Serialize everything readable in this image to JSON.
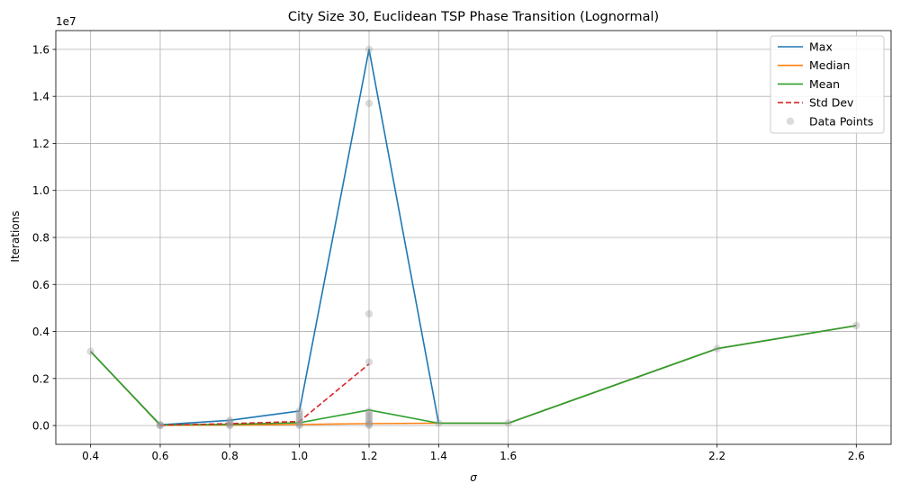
{
  "chart_data": {
    "type": "line",
    "title": "City Size 30, Euclidean TSP Phase Transition (Lognormal)",
    "xlabel": "σ",
    "ylabel": "Iterations",
    "y_multiplier_label": "1e7",
    "xlim": [
      0.3,
      2.7
    ],
    "ylim": [
      -0.08,
      1.68
    ],
    "x_ticks": [
      0.4,
      0.6,
      0.8,
      1.0,
      1.2,
      1.4,
      1.6,
      2.2,
      2.6
    ],
    "x_tick_labels": [
      "0.4",
      "0.6",
      "0.8",
      "1.0",
      "1.2",
      "1.4",
      "1.6",
      "2.2",
      "2.6"
    ],
    "y_ticks": [
      0.0,
      0.2,
      0.4,
      0.6,
      0.8,
      1.0,
      1.2,
      1.4,
      1.6
    ],
    "y_tick_labels": [
      "0.0",
      "0.2",
      "0.4",
      "0.6",
      "0.8",
      "1.0",
      "1.2",
      "1.4",
      "1.6"
    ],
    "grid": true,
    "legend_position": "top-right",
    "series": [
      {
        "name": "Max",
        "color": "#1f77b4",
        "dash": "solid",
        "x": [
          0.4,
          0.6,
          0.8,
          1.0,
          1.2,
          1.4,
          1.6,
          2.2,
          2.6
        ],
        "y": [
          0.315,
          0.003,
          0.022,
          0.062,
          1.6,
          0.01,
          0.01,
          0.327,
          0.425
        ]
      },
      {
        "name": "Median",
        "color": "#ff7f0e",
        "dash": "solid",
        "x": [
          0.4,
          0.6,
          0.8,
          1.0,
          1.2,
          1.4,
          1.6,
          2.2,
          2.6
        ],
        "y": [
          0.315,
          0.001,
          0.002,
          0.004,
          0.008,
          0.01,
          0.01,
          0.327,
          0.425
        ]
      },
      {
        "name": "Mean",
        "color": "#2ca02c",
        "dash": "solid",
        "x": [
          0.4,
          0.6,
          0.8,
          1.0,
          1.2,
          1.4,
          1.6,
          2.2,
          2.6
        ],
        "y": [
          0.315,
          0.002,
          0.005,
          0.012,
          0.066,
          0.01,
          0.01,
          0.327,
          0.425
        ]
      },
      {
        "name": "Std Dev",
        "color": "#d62728",
        "dash": "dashed",
        "x": [
          0.6,
          0.8,
          1.0,
          1.2
        ],
        "y": [
          0.001,
          0.008,
          0.017,
          0.262
        ]
      }
    ],
    "scatter": {
      "name": "Data Points",
      "color": "#999999",
      "points": [
        [
          0.4,
          0.315
        ],
        [
          0.6,
          0.0
        ],
        [
          0.6,
          0.002
        ],
        [
          0.6,
          0.003
        ],
        [
          0.8,
          0.0
        ],
        [
          0.8,
          0.003
        ],
        [
          0.8,
          0.008
        ],
        [
          0.8,
          0.015
        ],
        [
          0.8,
          0.022
        ],
        [
          1.0,
          0.0
        ],
        [
          1.0,
          0.005
        ],
        [
          1.0,
          0.01
        ],
        [
          1.0,
          0.02
        ],
        [
          1.0,
          0.03
        ],
        [
          1.0,
          0.04
        ],
        [
          1.0,
          0.05
        ],
        [
          1.0,
          0.062
        ],
        [
          1.2,
          0.0
        ],
        [
          1.2,
          0.005
        ],
        [
          1.2,
          0.01
        ],
        [
          1.2,
          0.02
        ],
        [
          1.2,
          0.03
        ],
        [
          1.2,
          0.04
        ],
        [
          1.2,
          0.05
        ],
        [
          1.2,
          0.06
        ],
        [
          1.2,
          0.27
        ],
        [
          1.2,
          0.475
        ],
        [
          1.2,
          1.37
        ],
        [
          1.2,
          1.6
        ],
        [
          1.4,
          0.01
        ],
        [
          1.6,
          0.01
        ],
        [
          2.2,
          0.327
        ],
        [
          2.6,
          0.425
        ]
      ]
    }
  }
}
